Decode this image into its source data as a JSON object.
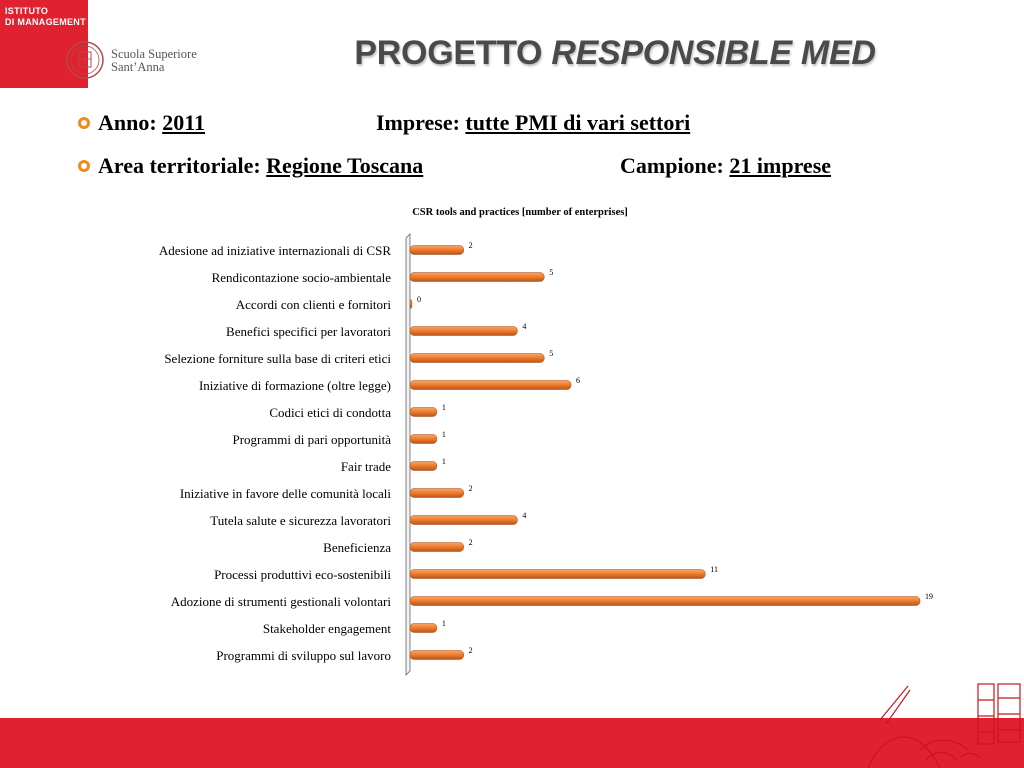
{
  "badge": {
    "line1": "ISTITUTO",
    "line2": "DI MANAGEMENT"
  },
  "logo": {
    "line1": "Scuola Superiore",
    "line2": "Sant’Anna"
  },
  "title": {
    "plain": "PROGETTO",
    "italic": "RESPONSIBLE MED"
  },
  "info": {
    "anno_label": "Anno:",
    "anno_value": "2011",
    "imprese_label": "Imprese:",
    "imprese_value": "tutte PMI di vari settori",
    "area_label": "Area territoriale:",
    "area_value": "Regione Toscana",
    "campione_label": "Campione:",
    "campione_value": "21 imprese"
  },
  "colors": {
    "accent_red": "#e0212f",
    "bar_orange": "#f07f2e",
    "bullet_orange": "#f08a1c"
  },
  "chart_data": {
    "type": "bar",
    "orientation": "horizontal",
    "title": "CSR tools and practices [number of enterprises]",
    "xlabel": "",
    "ylabel": "",
    "xlim": [
      0,
      19
    ],
    "grid": false,
    "legend": "none",
    "categories": [
      "Adesione ad iniziative internazionali di CSR",
      "Rendicontazione socio-ambientale",
      "Accordi con clienti e fornitori",
      "Benefici specifici per lavoratori",
      "Selezione forniture sulla base di criteri etici",
      "Iniziative di formazione (oltre legge)",
      "Codici etici di condotta",
      "Programmi di pari opportunità",
      "Fair trade",
      "Iniziative in favore delle comunità locali",
      "Tutela salute e sicurezza lavoratori",
      "Beneficienza",
      "Processi produttivi eco-sostenibili",
      "Adozione di strumenti gestionali volontari",
      "Stakeholder engagement",
      "Programmi di sviluppo sul lavoro"
    ],
    "values": [
      2,
      5,
      0,
      4,
      5,
      6,
      1,
      1,
      1,
      2,
      4,
      2,
      11,
      19,
      1,
      2
    ]
  }
}
